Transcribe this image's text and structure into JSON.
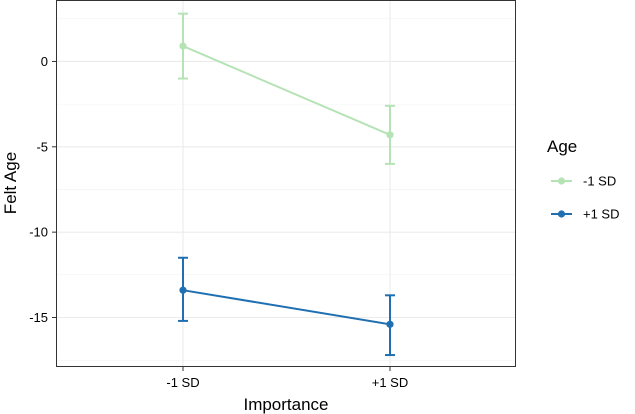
{
  "chart_data": {
    "type": "line",
    "title": "",
    "xlabel": "Importance",
    "ylabel": "Felt Age",
    "categories": [
      "-1 SD",
      "+1 SD"
    ],
    "ylim": [
      -17.9,
      3.6
    ],
    "yticks": [
      0,
      -5,
      -10,
      -15
    ],
    "ytick_labels": [
      "0",
      "-5",
      "-10",
      "-15"
    ],
    "grid": true,
    "legend": {
      "title": "Age",
      "placement": "right"
    },
    "series": [
      {
        "name": "-1 SD",
        "color": "#b5e3b6",
        "values": [
          0.9,
          -4.3
        ],
        "error_low": [
          -1.0,
          -6.0
        ],
        "error_high": [
          2.8,
          -2.6
        ]
      },
      {
        "name": "+1 SD",
        "color": "#1f6fb1",
        "values": [
          -13.4,
          -15.4
        ],
        "error_low": [
          -15.2,
          -17.2
        ],
        "error_high": [
          -11.5,
          -13.7
        ]
      }
    ]
  }
}
